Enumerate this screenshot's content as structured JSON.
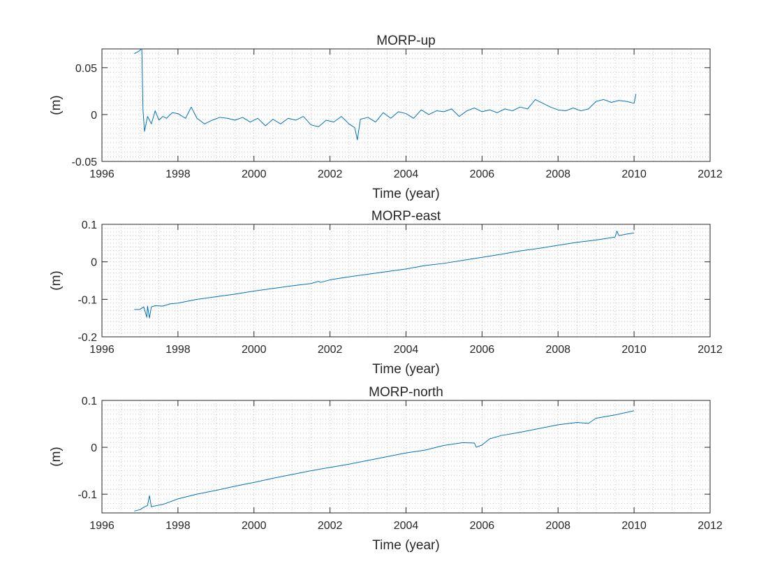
{
  "chart_data": [
    {
      "type": "line",
      "title": "MORP-up",
      "xlabel": "Time (year)",
      "ylabel": "(m)",
      "xlim": [
        1996,
        2012
      ],
      "ylim": [
        -0.05,
        0.07
      ],
      "xticks": [
        1996,
        1998,
        2000,
        2002,
        2004,
        2006,
        2008,
        2010,
        2012
      ],
      "yticks": [
        -0.05,
        0,
        0.05
      ],
      "x_tick_labels": [
        "1996",
        "1998",
        "2000",
        "2002",
        "2004",
        "2006",
        "2008",
        "2010",
        "2012"
      ],
      "y_tick_labels": [
        "-0.05",
        "0",
        "0.05"
      ],
      "grid": "minor-dotted",
      "series_color": "#0072BD",
      "x": [
        1996.85,
        1996.95,
        1997.05,
        1997.08,
        1997.12,
        1997.15,
        1997.2,
        1997.3,
        1997.4,
        1997.5,
        1997.6,
        1997.7,
        1997.85,
        1998.0,
        1998.2,
        1998.35,
        1998.5,
        1998.7,
        1998.9,
        1999.1,
        1999.3,
        1999.5,
        1999.7,
        1999.9,
        2000.1,
        2000.3,
        2000.5,
        2000.7,
        2000.9,
        2001.1,
        2001.3,
        2001.5,
        2001.7,
        2001.9,
        2002.1,
        2002.3,
        2002.5,
        2002.65,
        2002.72,
        2002.8,
        2003.0,
        2003.2,
        2003.4,
        2003.6,
        2003.8,
        2004.0,
        2004.2,
        2004.4,
        2004.6,
        2004.8,
        2005.0,
        2005.2,
        2005.4,
        2005.6,
        2005.8,
        2006.0,
        2006.2,
        2006.4,
        2006.6,
        2006.8,
        2007.0,
        2007.2,
        2007.4,
        2007.6,
        2007.8,
        2008.0,
        2008.2,
        2008.4,
        2008.6,
        2008.8,
        2009.0,
        2009.2,
        2009.4,
        2009.6,
        2009.8,
        2010.0,
        2010.05
      ],
      "y": [
        0.065,
        0.067,
        0.07,
        0.005,
        -0.018,
        -0.012,
        -0.002,
        -0.01,
        0.004,
        -0.006,
        -0.002,
        -0.004,
        0.002,
        0.001,
        -0.004,
        0.008,
        -0.004,
        -0.01,
        -0.006,
        -0.003,
        -0.004,
        -0.006,
        -0.003,
        -0.008,
        -0.004,
        -0.012,
        -0.005,
        -0.01,
        -0.004,
        -0.006,
        -0.002,
        -0.011,
        -0.013,
        -0.006,
        -0.008,
        -0.002,
        -0.01,
        -0.014,
        -0.027,
        -0.005,
        -0.003,
        -0.008,
        0.002,
        -0.004,
        0.003,
        0.001,
        -0.004,
        0.005,
        0.0,
        0.004,
        0.003,
        0.006,
        -0.002,
        0.004,
        0.007,
        0.003,
        0.005,
        0.002,
        0.006,
        0.004,
        0.008,
        0.006,
        0.016,
        0.012,
        0.008,
        0.005,
        0.004,
        0.007,
        0.004,
        0.006,
        0.014,
        0.016,
        0.013,
        0.015,
        0.014,
        0.012,
        0.022
      ]
    },
    {
      "type": "line",
      "title": "MORP-east",
      "xlabel": "Time (year)",
      "ylabel": "(m)",
      "xlim": [
        1996,
        2012
      ],
      "ylim": [
        -0.2,
        0.1
      ],
      "xticks": [
        1996,
        1998,
        2000,
        2002,
        2004,
        2006,
        2008,
        2010,
        2012
      ],
      "yticks": [
        -0.2,
        -0.1,
        0,
        0.1
      ],
      "x_tick_labels": [
        "1996",
        "1998",
        "2000",
        "2002",
        "2004",
        "2006",
        "2008",
        "2010",
        "2012"
      ],
      "y_tick_labels": [
        "-0.2",
        "-0.1",
        "0",
        "0.1"
      ],
      "grid": "minor-dotted",
      "series_color": "#0072BD",
      "x": [
        1996.85,
        1997.0,
        1997.1,
        1997.18,
        1997.2,
        1997.25,
        1997.3,
        1997.4,
        1997.6,
        1997.8,
        1998.0,
        1998.5,
        1999.0,
        1999.5,
        2000.0,
        2000.5,
        2001.0,
        2001.5,
        2001.7,
        2001.75,
        2002.0,
        2002.5,
        2003.0,
        2003.5,
        2004.0,
        2004.5,
        2005.0,
        2005.5,
        2006.0,
        2006.5,
        2007.0,
        2007.5,
        2008.0,
        2008.5,
        2009.0,
        2009.5,
        2009.55,
        2009.6,
        2009.8,
        2010.0
      ],
      "y": [
        -0.127,
        -0.127,
        -0.12,
        -0.148,
        -0.118,
        -0.15,
        -0.12,
        -0.117,
        -0.118,
        -0.112,
        -0.11,
        -0.1,
        -0.093,
        -0.086,
        -0.078,
        -0.071,
        -0.064,
        -0.058,
        -0.052,
        -0.055,
        -0.048,
        -0.04,
        -0.033,
        -0.026,
        -0.019,
        -0.01,
        -0.004,
        0.004,
        0.012,
        0.02,
        0.029,
        0.036,
        0.044,
        0.052,
        0.058,
        0.066,
        0.082,
        0.07,
        0.074,
        0.077
      ]
    },
    {
      "type": "line",
      "title": "MORP-north",
      "xlabel": "Time (year)",
      "ylabel": "(m)",
      "xlim": [
        1996,
        2012
      ],
      "ylim": [
        -0.14,
        0.1
      ],
      "xticks": [
        1996,
        1998,
        2000,
        2002,
        2004,
        2006,
        2008,
        2010,
        2012
      ],
      "yticks": [
        -0.1,
        0,
        0.1
      ],
      "x_tick_labels": [
        "1996",
        "1998",
        "2000",
        "2002",
        "2004",
        "2006",
        "2008",
        "2010",
        "2012"
      ],
      "y_tick_labels": [
        "-0.1",
        "0",
        "0.1"
      ],
      "grid": "minor-dotted",
      "series_color": "#0072BD",
      "x": [
        1996.85,
        1997.0,
        1997.1,
        1997.2,
        1997.25,
        1997.3,
        1997.4,
        1997.6,
        1998.0,
        1998.5,
        1999.0,
        1999.5,
        2000.0,
        2000.5,
        2001.0,
        2001.5,
        2002.0,
        2002.5,
        2003.0,
        2003.5,
        2004.0,
        2004.5,
        2005.0,
        2005.5,
        2005.8,
        2005.85,
        2006.0,
        2006.2,
        2006.5,
        2007.0,
        2007.5,
        2008.0,
        2008.5,
        2008.8,
        2009.0,
        2009.5,
        2010.0
      ],
      "y": [
        -0.136,
        -0.133,
        -0.128,
        -0.124,
        -0.103,
        -0.127,
        -0.125,
        -0.122,
        -0.11,
        -0.1,
        -0.092,
        -0.083,
        -0.075,
        -0.066,
        -0.058,
        -0.05,
        -0.043,
        -0.036,
        -0.028,
        -0.02,
        -0.012,
        -0.006,
        0.004,
        0.01,
        0.009,
        0.0,
        0.005,
        0.018,
        0.025,
        0.032,
        0.04,
        0.048,
        0.053,
        0.051,
        0.062,
        0.069,
        0.078
      ]
    }
  ]
}
